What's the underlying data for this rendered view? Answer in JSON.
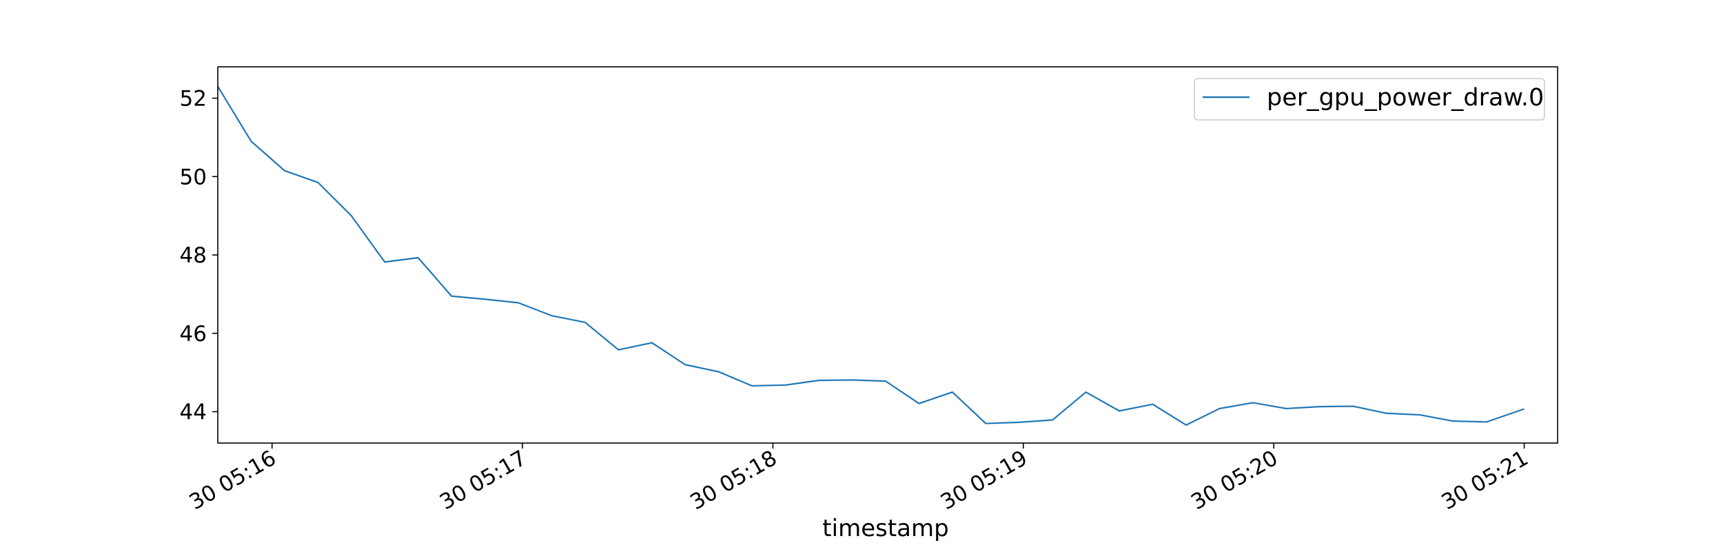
{
  "chart_data": {
    "type": "line",
    "xlabel": "timestamp",
    "ylabel": "",
    "x_ticks": [
      {
        "time": "05:16",
        "label": "30 05:16"
      },
      {
        "time": "05:17",
        "label": "30 05:17"
      },
      {
        "time": "05:18",
        "label": "30 05:18"
      },
      {
        "time": "05:19",
        "label": "30 05:19"
      },
      {
        "time": "05:20",
        "label": "30 05:20"
      },
      {
        "time": "05:21",
        "label": "30 05:21"
      }
    ],
    "y_ticks": [
      44,
      46,
      48,
      50,
      52
    ],
    "xlim": [
      "05:15:47",
      "05:21:08"
    ],
    "ylim": [
      43.2,
      52.8
    ],
    "legend": {
      "position": "top-right"
    },
    "grid": false,
    "series": [
      {
        "name": "per_gpu_power_draw.0",
        "color": "#1f77b4",
        "points": [
          {
            "x": "05:15:47",
            "y": 52.3
          },
          {
            "x": "05:15:55",
            "y": 50.9
          },
          {
            "x": "05:16:03",
            "y": 50.15
          },
          {
            "x": "05:16:11",
            "y": 49.85
          },
          {
            "x": "05:16:19",
            "y": 49.0
          },
          {
            "x": "05:16:27",
            "y": 47.82
          },
          {
            "x": "05:16:35",
            "y": 47.93
          },
          {
            "x": "05:16:43",
            "y": 46.95
          },
          {
            "x": "05:16:51",
            "y": 46.87
          },
          {
            "x": "05:16:59",
            "y": 46.78
          },
          {
            "x": "05:17:07",
            "y": 46.45
          },
          {
            "x": "05:17:15",
            "y": 46.28
          },
          {
            "x": "05:17:23",
            "y": 45.58
          },
          {
            "x": "05:17:31",
            "y": 45.76
          },
          {
            "x": "05:17:39",
            "y": 45.2
          },
          {
            "x": "05:17:47",
            "y": 45.02
          },
          {
            "x": "05:17:55",
            "y": 44.66
          },
          {
            "x": "05:18:03",
            "y": 44.68
          },
          {
            "x": "05:18:11",
            "y": 44.8
          },
          {
            "x": "05:18:19",
            "y": 44.81
          },
          {
            "x": "05:18:27",
            "y": 44.78
          },
          {
            "x": "05:18:35",
            "y": 44.21
          },
          {
            "x": "05:18:43",
            "y": 44.5
          },
          {
            "x": "05:18:51",
            "y": 43.7
          },
          {
            "x": "05:18:59",
            "y": 43.73
          },
          {
            "x": "05:19:07",
            "y": 43.79
          },
          {
            "x": "05:19:15",
            "y": 44.5
          },
          {
            "x": "05:19:23",
            "y": 44.02
          },
          {
            "x": "05:19:31",
            "y": 44.19
          },
          {
            "x": "05:19:39",
            "y": 43.66
          },
          {
            "x": "05:19:47",
            "y": 44.08
          },
          {
            "x": "05:19:55",
            "y": 44.23
          },
          {
            "x": "05:20:03",
            "y": 44.08
          },
          {
            "x": "05:20:11",
            "y": 44.13
          },
          {
            "x": "05:20:19",
            "y": 44.14
          },
          {
            "x": "05:20:27",
            "y": 43.96
          },
          {
            "x": "05:20:35",
            "y": 43.92
          },
          {
            "x": "05:20:43",
            "y": 43.76
          },
          {
            "x": "05:20:51",
            "y": 43.74
          },
          {
            "x": "05:21:00",
            "y": 44.07
          }
        ]
      }
    ]
  }
}
